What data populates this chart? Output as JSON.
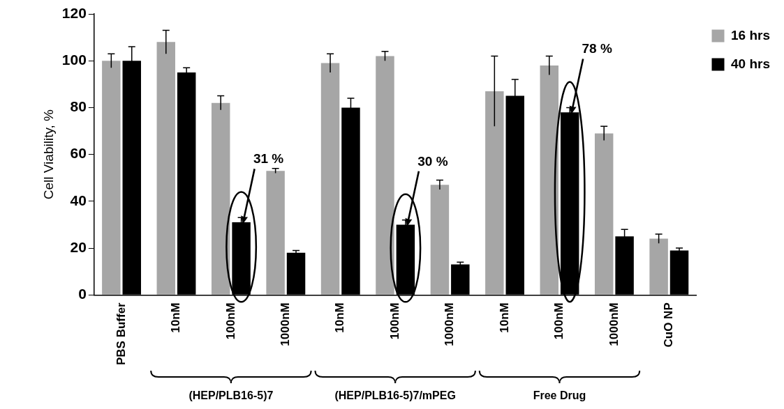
{
  "chart_data": {
    "type": "bar",
    "ylabel": "Cell Viability, %",
    "categories": [
      "PBS Buffer",
      "10nM",
      "100nM",
      "1000nM",
      "10nM",
      "100nM",
      "1000nM",
      "10nM",
      "100nM",
      "1000nM",
      "CuO NP"
    ],
    "series": [
      {
        "name": "16 hrs",
        "color": "#a6a6a6",
        "values": [
          100,
          108,
          82,
          53,
          99,
          102,
          47,
          87,
          98,
          69,
          24
        ],
        "errors": [
          3,
          5,
          3,
          1,
          4,
          2,
          2,
          15,
          4,
          3,
          2
        ]
      },
      {
        "name": "40 hrs",
        "color": "#000000",
        "values": [
          100,
          95,
          31,
          18,
          80,
          30,
          13,
          85,
          78,
          25,
          19
        ],
        "errors": [
          6,
          2,
          2,
          1,
          4,
          2,
          1,
          7,
          2,
          3,
          1
        ]
      }
    ],
    "ylim": [
      0,
      120
    ],
    "yticks": [
      0,
      20,
      40,
      60,
      80,
      100,
      120
    ],
    "grid": false,
    "legend": "top right",
    "annotations": [
      "31 %",
      "30 %",
      "78 %",
      "(HEP/PLB16-5)7",
      "(HEP/PLB16-5)7/mPEG",
      "Free Drug"
    ]
  }
}
